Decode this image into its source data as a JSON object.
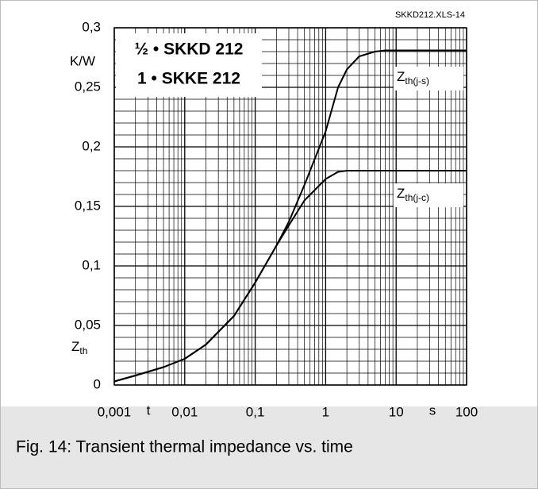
{
  "chart_data": {
    "type": "line",
    "annotation": "SKKD212.XLS-14",
    "legend_lines": [
      "½ • SKKD 212",
      "1 • SKKE 212"
    ],
    "y_unit": "K/W",
    "y_label": "Zth",
    "x_label": "t",
    "x_unit": "s",
    "caption": "Fig. 14: Transient thermal impedance vs. time",
    "x_log": true,
    "grid": true,
    "minor_grid": true,
    "x": [
      0.001,
      0.002,
      0.005,
      0.01,
      0.02,
      0.05,
      0.1,
      0.2,
      0.3,
      0.5,
      1,
      1.5,
      2,
      3,
      5,
      7,
      10,
      100
    ],
    "series": [
      {
        "name": "Zth(j-s)",
        "color": "#000000",
        "values": [
          0.003,
          0.008,
          0.015,
          0.022,
          0.034,
          0.058,
          0.086,
          0.117,
          0.137,
          0.168,
          0.213,
          0.25,
          0.265,
          0.276,
          0.28,
          0.281,
          0.281,
          0.281
        ]
      },
      {
        "name": "Zth(j-c)",
        "color": "#000000",
        "values": [
          0.003,
          0.008,
          0.015,
          0.022,
          0.034,
          0.058,
          0.086,
          0.117,
          0.134,
          0.155,
          0.173,
          0.179,
          0.18,
          0.18,
          0.18,
          0.18,
          0.18,
          0.18
        ]
      }
    ],
    "xlim": [
      0.001,
      100
    ],
    "xticks": [
      {
        "value": 0.001,
        "label": "0,001"
      },
      {
        "value": 0.01,
        "label": "0,01"
      },
      {
        "value": 0.1,
        "label": "0,1"
      },
      1,
      10,
      100
    ],
    "ylim": [
      0,
      0.3
    ],
    "yticks": [
      0,
      {
        "value": 0.05,
        "label": "0,05"
      },
      {
        "value": 0.1,
        "label": "0,1"
      },
      {
        "value": 0.15,
        "label": "0,15"
      },
      {
        "value": 0.2,
        "label": "0,2"
      },
      {
        "value": 0.25,
        "label": "0,25"
      },
      {
        "value": 0.3,
        "label": "0,3"
      }
    ]
  }
}
